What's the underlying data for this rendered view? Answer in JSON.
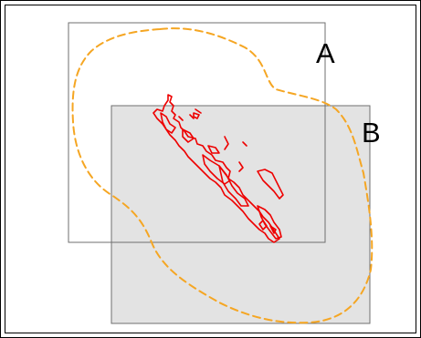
{
  "labels": {
    "box_a": "A",
    "box_b": "B"
  },
  "colors": {
    "frame": "#000000",
    "box_a_stroke": "#6f6f6f",
    "box_b_fill": "#e3e3e3",
    "box_b_stroke": "#6f6f6f",
    "buffer": "#f5a623",
    "coastline": "#ee0000",
    "label_text": "#000000"
  }
}
